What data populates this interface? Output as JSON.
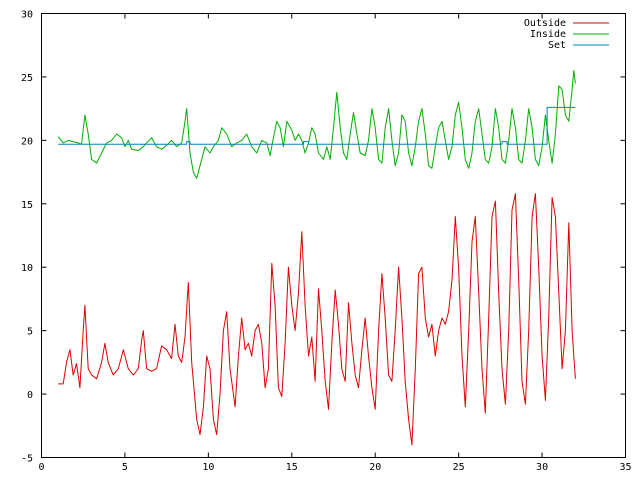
{
  "chart_data": {
    "type": "line",
    "title": "",
    "xlabel": "",
    "ylabel": "",
    "xlim": [
      0,
      35
    ],
    "ylim": [
      -5,
      30
    ],
    "xticks": [
      0,
      5,
      10,
      15,
      20,
      25,
      30,
      35
    ],
    "yticks": [
      -5,
      0,
      5,
      10,
      15,
      20,
      25,
      30
    ],
    "grid": false,
    "legend_position": "top-right",
    "series": [
      {
        "name": "Outside",
        "color": "#e00000",
        "points": [
          [
            1.0,
            0.8
          ],
          [
            1.3,
            0.8
          ],
          [
            1.5,
            2.5
          ],
          [
            1.7,
            3.5
          ],
          [
            1.9,
            1.5
          ],
          [
            2.1,
            2.4
          ],
          [
            2.3,
            0.5
          ],
          [
            2.5,
            5.0
          ],
          [
            2.6,
            7.0
          ],
          [
            2.8,
            2.0
          ],
          [
            3.0,
            1.5
          ],
          [
            3.3,
            1.2
          ],
          [
            3.6,
            2.5
          ],
          [
            3.8,
            4.0
          ],
          [
            4.0,
            2.5
          ],
          [
            4.3,
            1.5
          ],
          [
            4.6,
            2.0
          ],
          [
            4.9,
            3.5
          ],
          [
            5.2,
            2.0
          ],
          [
            5.5,
            1.5
          ],
          [
            5.8,
            2.0
          ],
          [
            6.0,
            4.2
          ],
          [
            6.1,
            5.0
          ],
          [
            6.3,
            2.0
          ],
          [
            6.6,
            1.8
          ],
          [
            6.9,
            2.0
          ],
          [
            7.2,
            3.8
          ],
          [
            7.5,
            3.5
          ],
          [
            7.8,
            2.8
          ],
          [
            8.0,
            5.5
          ],
          [
            8.2,
            3.0
          ],
          [
            8.4,
            2.5
          ],
          [
            8.6,
            4.5
          ],
          [
            8.8,
            8.8
          ],
          [
            9.0,
            2.5
          ],
          [
            9.3,
            -2.0
          ],
          [
            9.5,
            -3.2
          ],
          [
            9.7,
            -1.0
          ],
          [
            9.9,
            3.0
          ],
          [
            10.1,
            2.0
          ],
          [
            10.3,
            -2.0
          ],
          [
            10.5,
            -3.2
          ],
          [
            10.7,
            0.0
          ],
          [
            10.9,
            5.0
          ],
          [
            11.1,
            6.5
          ],
          [
            11.3,
            2.0
          ],
          [
            11.6,
            -1.0
          ],
          [
            11.8,
            3.0
          ],
          [
            12.0,
            6.0
          ],
          [
            12.2,
            3.5
          ],
          [
            12.4,
            4.0
          ],
          [
            12.6,
            3.0
          ],
          [
            12.8,
            5.0
          ],
          [
            13.0,
            5.5
          ],
          [
            13.2,
            4.0
          ],
          [
            13.4,
            0.5
          ],
          [
            13.6,
            2.0
          ],
          [
            13.8,
            10.3
          ],
          [
            14.0,
            7.0
          ],
          [
            14.2,
            0.5
          ],
          [
            14.4,
            -0.2
          ],
          [
            14.6,
            4.0
          ],
          [
            14.8,
            10.0
          ],
          [
            15.0,
            7.0
          ],
          [
            15.2,
            5.0
          ],
          [
            15.4,
            8.0
          ],
          [
            15.6,
            12.8
          ],
          [
            15.8,
            7.0
          ],
          [
            16.0,
            3.0
          ],
          [
            16.2,
            4.5
          ],
          [
            16.4,
            1.0
          ],
          [
            16.6,
            8.3
          ],
          [
            16.8,
            5.0
          ],
          [
            17.0,
            1.0
          ],
          [
            17.2,
            -1.2
          ],
          [
            17.4,
            4.0
          ],
          [
            17.6,
            8.2
          ],
          [
            17.8,
            5.5
          ],
          [
            18.0,
            2.0
          ],
          [
            18.2,
            1.0
          ],
          [
            18.4,
            7.2
          ],
          [
            18.6,
            4.0
          ],
          [
            18.8,
            1.5
          ],
          [
            19.0,
            0.5
          ],
          [
            19.2,
            3.5
          ],
          [
            19.4,
            6.0
          ],
          [
            19.6,
            3.0
          ],
          [
            19.8,
            0.5
          ],
          [
            20.0,
            -1.2
          ],
          [
            20.2,
            5.0
          ],
          [
            20.4,
            9.5
          ],
          [
            20.6,
            6.0
          ],
          [
            20.8,
            1.5
          ],
          [
            21.0,
            1.0
          ],
          [
            21.2,
            5.0
          ],
          [
            21.4,
            10.0
          ],
          [
            21.6,
            6.0
          ],
          [
            21.8,
            1.0
          ],
          [
            22.0,
            -2.0
          ],
          [
            22.2,
            -4.0
          ],
          [
            22.4,
            2.0
          ],
          [
            22.6,
            9.5
          ],
          [
            22.8,
            10.0
          ],
          [
            23.0,
            6.0
          ],
          [
            23.2,
            4.5
          ],
          [
            23.4,
            5.5
          ],
          [
            23.6,
            3.0
          ],
          [
            23.8,
            5.0
          ],
          [
            24.0,
            6.0
          ],
          [
            24.2,
            5.5
          ],
          [
            24.4,
            6.5
          ],
          [
            24.6,
            9.0
          ],
          [
            24.8,
            14.0
          ],
          [
            25.0,
            10.0
          ],
          [
            25.2,
            3.0
          ],
          [
            25.4,
            -1.0
          ],
          [
            25.6,
            5.0
          ],
          [
            25.8,
            12.0
          ],
          [
            26.0,
            14.0
          ],
          [
            26.2,
            8.0
          ],
          [
            26.4,
            2.0
          ],
          [
            26.6,
            -1.5
          ],
          [
            26.8,
            6.0
          ],
          [
            27.0,
            14.0
          ],
          [
            27.2,
            15.2
          ],
          [
            27.4,
            8.0
          ],
          [
            27.6,
            2.0
          ],
          [
            27.8,
            -0.8
          ],
          [
            28.0,
            5.0
          ],
          [
            28.2,
            14.5
          ],
          [
            28.4,
            15.8
          ],
          [
            28.6,
            9.0
          ],
          [
            28.8,
            1.0
          ],
          [
            29.0,
            -0.8
          ],
          [
            29.2,
            5.0
          ],
          [
            29.4,
            14.0
          ],
          [
            29.6,
            15.8
          ],
          [
            29.8,
            10.0
          ],
          [
            30.0,
            3.0
          ],
          [
            30.2,
            -0.5
          ],
          [
            30.4,
            6.0
          ],
          [
            30.6,
            15.5
          ],
          [
            30.8,
            14.0
          ],
          [
            31.0,
            8.0
          ],
          [
            31.2,
            2.0
          ],
          [
            31.4,
            5.0
          ],
          [
            31.6,
            13.5
          ],
          [
            31.8,
            5.0
          ],
          [
            32.0,
            1.2
          ]
        ]
      },
      {
        "name": "Inside",
        "color": "#00b000",
        "points": [
          [
            1.0,
            20.3
          ],
          [
            1.3,
            19.8
          ],
          [
            1.6,
            20.0
          ],
          [
            1.9,
            19.9
          ],
          [
            2.2,
            19.8
          ],
          [
            2.4,
            19.7
          ],
          [
            2.6,
            22.0
          ],
          [
            2.8,
            20.5
          ],
          [
            3.0,
            18.5
          ],
          [
            3.3,
            18.2
          ],
          [
            3.6,
            19.0
          ],
          [
            3.9,
            19.8
          ],
          [
            4.2,
            20.0
          ],
          [
            4.5,
            20.5
          ],
          [
            4.8,
            20.2
          ],
          [
            5.0,
            19.5
          ],
          [
            5.2,
            20.0
          ],
          [
            5.4,
            19.3
          ],
          [
            5.8,
            19.2
          ],
          [
            6.1,
            19.5
          ],
          [
            6.3,
            19.8
          ],
          [
            6.6,
            20.2
          ],
          [
            6.9,
            19.5
          ],
          [
            7.2,
            19.3
          ],
          [
            7.5,
            19.6
          ],
          [
            7.8,
            20.0
          ],
          [
            8.1,
            19.5
          ],
          [
            8.4,
            19.8
          ],
          [
            8.6,
            21.5
          ],
          [
            8.7,
            22.5
          ],
          [
            8.9,
            19.0
          ],
          [
            9.1,
            17.5
          ],
          [
            9.3,
            17.0
          ],
          [
            9.5,
            18.0
          ],
          [
            9.8,
            19.5
          ],
          [
            10.1,
            19.0
          ],
          [
            10.3,
            19.5
          ],
          [
            10.6,
            20.0
          ],
          [
            10.8,
            21.0
          ],
          [
            11.1,
            20.5
          ],
          [
            11.4,
            19.5
          ],
          [
            11.7,
            19.8
          ],
          [
            12.0,
            20.0
          ],
          [
            12.3,
            20.5
          ],
          [
            12.6,
            19.5
          ],
          [
            12.9,
            19.0
          ],
          [
            13.2,
            20.0
          ],
          [
            13.5,
            19.8
          ],
          [
            13.7,
            18.8
          ],
          [
            13.9,
            20.2
          ],
          [
            14.1,
            21.5
          ],
          [
            14.3,
            21.0
          ],
          [
            14.5,
            19.5
          ],
          [
            14.7,
            21.5
          ],
          [
            15.0,
            20.8
          ],
          [
            15.2,
            20.0
          ],
          [
            15.4,
            20.5
          ],
          [
            15.6,
            20.0
          ],
          [
            15.8,
            19.0
          ],
          [
            16.0,
            19.8
          ],
          [
            16.2,
            21.0
          ],
          [
            16.4,
            20.5
          ],
          [
            16.6,
            19.0
          ],
          [
            16.9,
            18.5
          ],
          [
            17.1,
            19.5
          ],
          [
            17.3,
            18.5
          ],
          [
            17.5,
            21.0
          ],
          [
            17.7,
            23.8
          ],
          [
            17.9,
            21.0
          ],
          [
            18.1,
            19.0
          ],
          [
            18.3,
            18.5
          ],
          [
            18.5,
            20.5
          ],
          [
            18.7,
            22.2
          ],
          [
            18.9,
            20.5
          ],
          [
            19.1,
            19.0
          ],
          [
            19.4,
            18.8
          ],
          [
            19.6,
            20.0
          ],
          [
            19.8,
            22.5
          ],
          [
            20.0,
            21.0
          ],
          [
            20.2,
            18.5
          ],
          [
            20.4,
            18.2
          ],
          [
            20.6,
            21.0
          ],
          [
            20.8,
            22.5
          ],
          [
            21.0,
            20.0
          ],
          [
            21.2,
            18.0
          ],
          [
            21.4,
            19.0
          ],
          [
            21.6,
            22.0
          ],
          [
            21.8,
            21.5
          ],
          [
            22.0,
            19.0
          ],
          [
            22.2,
            18.0
          ],
          [
            22.4,
            19.5
          ],
          [
            22.6,
            21.5
          ],
          [
            22.8,
            22.5
          ],
          [
            23.0,
            20.5
          ],
          [
            23.2,
            18.0
          ],
          [
            23.4,
            17.8
          ],
          [
            23.6,
            19.5
          ],
          [
            23.8,
            21.0
          ],
          [
            24.0,
            21.5
          ],
          [
            24.2,
            20.0
          ],
          [
            24.4,
            18.5
          ],
          [
            24.6,
            19.5
          ],
          [
            24.8,
            22.0
          ],
          [
            25.0,
            23.0
          ],
          [
            25.2,
            21.0
          ],
          [
            25.4,
            18.5
          ],
          [
            25.6,
            17.8
          ],
          [
            25.8,
            19.0
          ],
          [
            26.0,
            21.5
          ],
          [
            26.2,
            22.5
          ],
          [
            26.4,
            20.5
          ],
          [
            26.6,
            18.5
          ],
          [
            26.8,
            18.2
          ],
          [
            27.0,
            19.5
          ],
          [
            27.2,
            22.5
          ],
          [
            27.4,
            21.0
          ],
          [
            27.6,
            18.5
          ],
          [
            27.8,
            18.2
          ],
          [
            28.0,
            20.0
          ],
          [
            28.2,
            22.5
          ],
          [
            28.4,
            21.0
          ],
          [
            28.6,
            18.5
          ],
          [
            28.8,
            18.2
          ],
          [
            29.0,
            20.0
          ],
          [
            29.2,
            22.5
          ],
          [
            29.4,
            21.0
          ],
          [
            29.6,
            18.5
          ],
          [
            29.8,
            18.0
          ],
          [
            30.0,
            19.5
          ],
          [
            30.2,
            22.0
          ],
          [
            30.4,
            20.0
          ],
          [
            30.6,
            18.2
          ],
          [
            30.8,
            20.5
          ],
          [
            31.0,
            24.3
          ],
          [
            31.2,
            24.0
          ],
          [
            31.4,
            22.0
          ],
          [
            31.6,
            21.5
          ],
          [
            31.8,
            24.0
          ],
          [
            31.9,
            25.5
          ],
          [
            32.0,
            24.5
          ]
        ]
      },
      {
        "name": "Set",
        "color": "#0080c0",
        "step": true,
        "points": [
          [
            1.0,
            19.7
          ],
          [
            8.7,
            19.7
          ],
          [
            8.7,
            19.9
          ],
          [
            8.9,
            19.9
          ],
          [
            8.9,
            19.7
          ],
          [
            15.7,
            19.7
          ],
          [
            15.7,
            19.9
          ],
          [
            16.0,
            19.9
          ],
          [
            16.0,
            19.7
          ],
          [
            27.6,
            19.7
          ],
          [
            27.6,
            19.9
          ],
          [
            27.9,
            19.9
          ],
          [
            27.9,
            19.7
          ],
          [
            30.3,
            19.7
          ],
          [
            30.3,
            22.6
          ],
          [
            32.0,
            22.6
          ]
        ]
      }
    ]
  }
}
